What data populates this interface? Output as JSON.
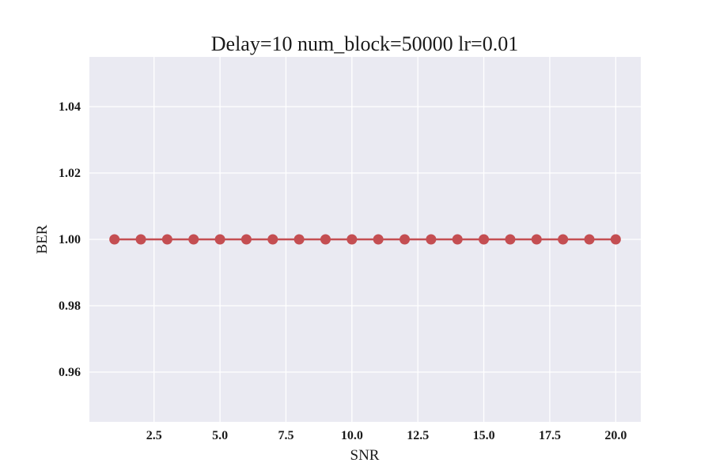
{
  "chart_data": {
    "type": "line",
    "title": "Delay=10 num_block=50000 lr=0.01",
    "xlabel": "SNR",
    "ylabel": "BER",
    "x": [
      1,
      2,
      3,
      4,
      5,
      6,
      7,
      8,
      9,
      10,
      11,
      12,
      13,
      14,
      15,
      16,
      17,
      18,
      19,
      20
    ],
    "series": [
      {
        "values": [
          1.0,
          1.0,
          1.0,
          1.0,
          1.0,
          1.0,
          1.0,
          1.0,
          1.0,
          1.0,
          1.0,
          1.0,
          1.0,
          1.0,
          1.0,
          1.0,
          1.0,
          1.0,
          1.0,
          1.0
        ],
        "color": "#c44e52",
        "marker": "circle"
      }
    ],
    "xlim": [
      0.05,
      20.95
    ],
    "ylim": [
      0.945,
      1.055
    ],
    "xticks": [
      2.5,
      5.0,
      7.5,
      10.0,
      12.5,
      15.0,
      17.5,
      20.0
    ],
    "xtick_labels": [
      "2.5",
      "5.0",
      "7.5",
      "10.0",
      "12.5",
      "15.0",
      "17.5",
      "20.0"
    ],
    "yticks": [
      0.96,
      0.98,
      1.0,
      1.02,
      1.04
    ],
    "ytick_labels": [
      "0.96",
      "0.98",
      "1.00",
      "1.02",
      "1.04"
    ],
    "grid": true,
    "background_color": "#eaeaf2"
  }
}
